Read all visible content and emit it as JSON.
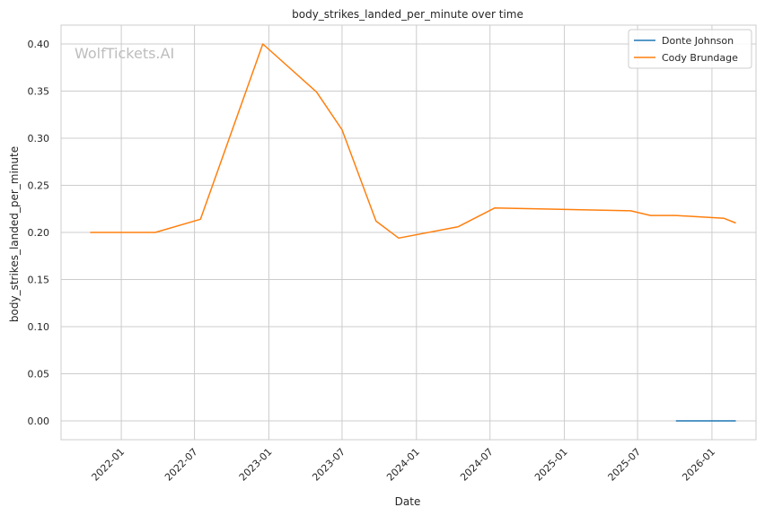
{
  "chart_data": {
    "type": "line",
    "title": "body_strikes_landed_per_minute over time",
    "xlabel": "Date",
    "ylabel": "body_strikes_landed_per_minute",
    "watermark": "WolfTickets.AI",
    "xlim": [
      "2021-08-05",
      "2026-04-20"
    ],
    "ylim": [
      -0.02,
      0.42
    ],
    "x_ticks": [
      "2022-01",
      "2022-07",
      "2023-01",
      "2023-07",
      "2024-01",
      "2024-07",
      "2025-01",
      "2025-07",
      "2026-01"
    ],
    "y_ticks": [
      0.0,
      0.05,
      0.1,
      0.15,
      0.2,
      0.25,
      0.3,
      0.35,
      0.4
    ],
    "y_tick_labels": [
      "0.00",
      "0.05",
      "0.10",
      "0.15",
      "0.20",
      "0.25",
      "0.30",
      "0.35",
      "0.40"
    ],
    "grid": true,
    "legend_position": "top-right",
    "series": [
      {
        "name": "Donte Johnson",
        "color": "#1f77b4",
        "points": [
          {
            "x": "2025-10-04",
            "y": 0.0
          },
          {
            "x": "2026-03-01",
            "y": 0.0
          }
        ]
      },
      {
        "name": "Cody Brundage",
        "color": "#ff7f0e",
        "points": [
          {
            "x": "2021-10-16",
            "y": 0.2
          },
          {
            "x": "2022-03-26",
            "y": 0.2
          },
          {
            "x": "2022-07-16",
            "y": 0.214
          },
          {
            "x": "2022-12-17",
            "y": 0.4
          },
          {
            "x": "2023-04-29",
            "y": 0.349
          },
          {
            "x": "2023-07-01",
            "y": 0.309
          },
          {
            "x": "2023-09-23",
            "y": 0.212
          },
          {
            "x": "2023-11-18",
            "y": 0.194
          },
          {
            "x": "2024-04-13",
            "y": 0.206
          },
          {
            "x": "2024-07-13",
            "y": 0.226
          },
          {
            "x": "2025-06-14",
            "y": 0.223
          },
          {
            "x": "2025-08-02",
            "y": 0.218
          },
          {
            "x": "2025-10-04",
            "y": 0.218
          },
          {
            "x": "2026-01-31",
            "y": 0.215
          },
          {
            "x": "2026-03-01",
            "y": 0.21
          }
        ]
      }
    ]
  }
}
